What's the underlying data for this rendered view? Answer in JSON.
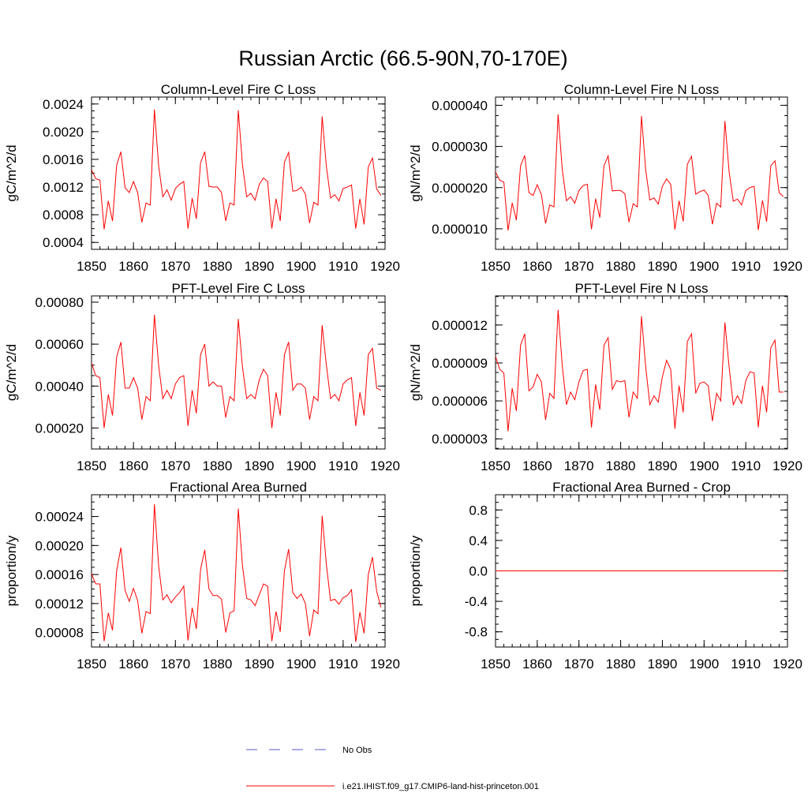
{
  "figure": {
    "title": "Russian Arctic (66.5-90N,70-170E)"
  },
  "legend": {
    "placement": "bottom-center",
    "entries": [
      {
        "label": "No Obs",
        "color": "#5a5ac8",
        "style": "dashed"
      },
      {
        "label": "i.e21.IHIST.f09_g17.CMIP6-land-hist-princeton.001",
        "color": "#ff0000",
        "style": "solid"
      }
    ]
  },
  "chart_data": [
    {
      "type": "line",
      "title": "Column-Level Fire C Loss",
      "xlabel": "",
      "ylabel": "gC/m^2/d",
      "xlim": [
        1850,
        1920
      ],
      "ylim": [
        0.0003,
        0.0025
      ],
      "xticks": [
        1850,
        1860,
        1870,
        1880,
        1890,
        1900,
        1910,
        1920
      ],
      "xtick_labels": [
        "1850",
        "1860",
        "1870",
        "1880",
        "1890",
        "1900",
        "1910",
        "1920"
      ],
      "yticks": [
        0.0004,
        0.0008,
        0.0012,
        0.0016,
        0.002,
        0.0024
      ],
      "ytick_labels": [
        "0.0004",
        "0.0008",
        "0.0012",
        "0.0016",
        "0.0020",
        "0.0024"
      ],
      "series": [
        {
          "color": "#ff0000",
          "x": [
            1850,
            1851,
            1852,
            1853,
            1854,
            1855,
            1856,
            1857,
            1858,
            1859,
            1860,
            1861,
            1862,
            1863,
            1864,
            1865,
            1866,
            1867,
            1868,
            1869,
            1870,
            1871,
            1872,
            1873,
            1874,
            1875,
            1876,
            1877,
            1878,
            1879,
            1880,
            1881,
            1882,
            1883,
            1884,
            1885,
            1886,
            1887,
            1888,
            1889,
            1890,
            1891,
            1892,
            1893,
            1894,
            1895,
            1896,
            1897,
            1898,
            1899,
            1900,
            1901,
            1902,
            1903,
            1904,
            1905,
            1906,
            1907,
            1908,
            1909,
            1910,
            1911,
            1912,
            1913,
            1914,
            1915,
            1916,
            1917,
            1918,
            1919
          ],
          "values": [
            0.00145,
            0.00132,
            0.0013,
            0.00059,
            0.001,
            0.00071,
            0.00152,
            0.00171,
            0.00119,
            0.00112,
            0.00128,
            0.00112,
            0.00069,
            0.00097,
            0.00094,
            0.00232,
            0.00151,
            0.00106,
            0.00116,
            0.00101,
            0.00118,
            0.00124,
            0.00128,
            0.0006,
            0.00104,
            0.00074,
            0.00155,
            0.00171,
            0.00121,
            0.0012,
            0.0012,
            0.00112,
            0.00071,
            0.00097,
            0.00094,
            0.00231,
            0.00152,
            0.00106,
            0.00111,
            0.00101,
            0.00124,
            0.00133,
            0.00128,
            0.0006,
            0.00103,
            0.00071,
            0.00156,
            0.0017,
            0.00114,
            0.00115,
            0.0012,
            0.0011,
            0.00068,
            0.00098,
            0.00094,
            0.00222,
            0.0015,
            0.00104,
            0.00109,
            0.001,
            0.00118,
            0.0012,
            0.00123,
            0.0006,
            0.00103,
            0.00066,
            0.00149,
            0.00162,
            0.00117,
            0.00108
          ]
        }
      ]
    },
    {
      "type": "line",
      "title": "Column-Level Fire N Loss",
      "xlabel": "",
      "ylabel": "gN/m^2/d",
      "xlim": [
        1850,
        1920
      ],
      "ylim": [
        5e-06,
        4.2e-05
      ],
      "xticks": [
        1850,
        1860,
        1870,
        1880,
        1890,
        1900,
        1910,
        1920
      ],
      "xtick_labels": [
        "1850",
        "1860",
        "1870",
        "1880",
        "1890",
        "1900",
        "1910",
        "1920"
      ],
      "yticks": [
        1e-05,
        2e-05,
        3e-05,
        4e-05
      ],
      "ytick_labels": [
        "0.000010",
        "0.000020",
        "0.000030",
        "0.000040"
      ],
      "series": [
        {
          "color": "#ff0000",
          "x": [
            1850,
            1851,
            1852,
            1853,
            1854,
            1855,
            1856,
            1857,
            1858,
            1859,
            1860,
            1861,
            1862,
            1863,
            1864,
            1865,
            1866,
            1867,
            1868,
            1869,
            1870,
            1871,
            1872,
            1873,
            1874,
            1875,
            1876,
            1877,
            1878,
            1879,
            1880,
            1881,
            1882,
            1883,
            1884,
            1885,
            1886,
            1887,
            1888,
            1889,
            1890,
            1891,
            1892,
            1893,
            1894,
            1895,
            1896,
            1897,
            1898,
            1899,
            1900,
            1901,
            1902,
            1903,
            1904,
            1905,
            1906,
            1907,
            1908,
            1909,
            1910,
            1911,
            1912,
            1913,
            1914,
            1915,
            1916,
            1917,
            1918,
            1919
          ],
          "values": [
            2.38e-05,
            2.18e-05,
            2.13e-05,
            9.6e-06,
            1.63e-05,
            1.21e-05,
            2.53e-05,
            2.78e-05,
            1.88e-05,
            1.81e-05,
            2.07e-05,
            1.83e-05,
            1.13e-05,
            1.58e-05,
            1.53e-05,
            3.78e-05,
            2.44e-05,
            1.68e-05,
            1.78e-05,
            1.62e-05,
            1.93e-05,
            2.05e-05,
            2.08e-05,
            9.9e-06,
            1.73e-05,
            1.27e-05,
            2.53e-05,
            2.77e-05,
            1.92e-05,
            1.93e-05,
            1.93e-05,
            1.85e-05,
            1.16e-05,
            1.61e-05,
            1.53e-05,
            3.74e-05,
            2.43e-05,
            1.7e-05,
            1.75e-05,
            1.6e-05,
            2.03e-05,
            2.21e-05,
            2.08e-05,
            9.8e-06,
            1.68e-05,
            1.18e-05,
            2.57e-05,
            2.76e-05,
            1.84e-05,
            1.9e-05,
            1.94e-05,
            1.81e-05,
            1.11e-05,
            1.62e-05,
            1.53e-05,
            3.62e-05,
            2.39e-05,
            1.67e-05,
            1.72e-05,
            1.58e-05,
            1.93e-05,
            2e-05,
            2.03e-05,
            9.7e-06,
            1.69e-05,
            1.17e-05,
            2.53e-05,
            2.65e-05,
            1.88e-05,
            1.78e-05
          ]
        }
      ]
    },
    {
      "type": "line",
      "title": "PFT-Level Fire C Loss",
      "xlabel": "",
      "ylabel": "gC/m^2/d",
      "xlim": [
        1850,
        1920
      ],
      "ylim": [
        0.0001,
        0.00083
      ],
      "xticks": [
        1850,
        1860,
        1870,
        1880,
        1890,
        1900,
        1910,
        1920
      ],
      "xtick_labels": [
        "1850",
        "1860",
        "1870",
        "1880",
        "1890",
        "1900",
        "1910",
        "1920"
      ],
      "yticks": [
        0.0002,
        0.0004,
        0.0006,
        0.0008
      ],
      "ytick_labels": [
        "0.00020",
        "0.00040",
        "0.00060",
        "0.00080"
      ],
      "series": [
        {
          "color": "#ff0000",
          "x": [
            1850,
            1851,
            1852,
            1853,
            1854,
            1855,
            1856,
            1857,
            1858,
            1859,
            1860,
            1861,
            1862,
            1863,
            1864,
            1865,
            1866,
            1867,
            1868,
            1869,
            1870,
            1871,
            1872,
            1873,
            1874,
            1875,
            1876,
            1877,
            1878,
            1879,
            1880,
            1881,
            1882,
            1883,
            1884,
            1885,
            1886,
            1887,
            1888,
            1889,
            1890,
            1891,
            1892,
            1893,
            1894,
            1895,
            1896,
            1897,
            1898,
            1899,
            1900,
            1901,
            1902,
            1903,
            1904,
            1905,
            1906,
            1907,
            1908,
            1909,
            1910,
            1911,
            1912,
            1913,
            1914,
            1915,
            1916,
            1917,
            1918,
            1919
          ],
          "values": [
            0.00051,
            0.00045,
            0.00044,
            0.0002,
            0.00036,
            0.00026,
            0.00054,
            0.00061,
            0.00039,
            0.00039,
            0.00044,
            0.00039,
            0.00024,
            0.00035,
            0.00033,
            0.00074,
            0.0005,
            0.00034,
            0.00038,
            0.00034,
            0.00041,
            0.00044,
            0.00045,
            0.00021,
            0.00038,
            0.00027,
            0.00055,
            0.0006,
            0.0004,
            0.00042,
            0.0004,
            0.0004,
            0.00025,
            0.00035,
            0.00033,
            0.00072,
            0.00049,
            0.00034,
            0.00036,
            0.00034,
            0.00043,
            0.00048,
            0.00045,
            0.0002,
            0.00037,
            0.00026,
            0.00055,
            0.00061,
            0.00038,
            0.00041,
            0.00041,
            0.00039,
            0.00024,
            0.00035,
            0.00033,
            0.00069,
            0.0005,
            0.00034,
            0.00036,
            0.00033,
            0.00041,
            0.00043,
            0.00044,
            0.00021,
            0.00037,
            0.00026,
            0.00055,
            0.00058,
            0.00039,
            0.00038
          ]
        }
      ]
    },
    {
      "type": "line",
      "title": "PFT-Level Fire N Loss",
      "xlabel": "",
      "ylabel": "gN/m^2/d",
      "xlim": [
        1850,
        1920
      ],
      "ylim": [
        2.2e-06,
        1.43e-05
      ],
      "xticks": [
        1850,
        1860,
        1870,
        1880,
        1890,
        1900,
        1910,
        1920
      ],
      "xtick_labels": [
        "1850",
        "1860",
        "1870",
        "1880",
        "1890",
        "1900",
        "1910",
        "1920"
      ],
      "yticks": [
        3e-06,
        6e-06,
        9e-06,
        1.2e-05
      ],
      "ytick_labels": [
        "0.000003",
        "0.000006",
        "0.000009",
        "0.000012"
      ],
      "series": [
        {
          "color": "#ff0000",
          "x": [
            1850,
            1851,
            1852,
            1853,
            1854,
            1855,
            1856,
            1857,
            1858,
            1859,
            1860,
            1861,
            1862,
            1863,
            1864,
            1865,
            1866,
            1867,
            1868,
            1869,
            1870,
            1871,
            1872,
            1873,
            1874,
            1875,
            1876,
            1877,
            1878,
            1879,
            1880,
            1881,
            1882,
            1883,
            1884,
            1885,
            1886,
            1887,
            1888,
            1889,
            1890,
            1891,
            1892,
            1893,
            1894,
            1895,
            1896,
            1897,
            1898,
            1899,
            1900,
            1901,
            1902,
            1903,
            1904,
            1905,
            1906,
            1907,
            1908,
            1909,
            1910,
            1911,
            1912,
            1913,
            1914,
            1915,
            1916,
            1917,
            1918,
            1919
          ],
          "values": [
            9.5e-06,
            8.5e-06,
            8.2e-06,
            3.6e-06,
            7e-06,
            5.2e-06,
            1.04e-05,
            1.13e-05,
            6.8e-06,
            7.1e-06,
            8.1e-06,
            7.5e-06,
            4.5e-06,
            6.6e-06,
            6.2e-06,
            1.32e-05,
            8.8e-06,
            5.7e-06,
            6.7e-06,
            6.1e-06,
            7.5e-06,
            8.4e-06,
            8.5e-06,
            3.9e-06,
            7.3e-06,
            5.3e-06,
            1.04e-05,
            1.1e-05,
            6.9e-06,
            7.6e-06,
            7.5e-06,
            7.6e-06,
            4.7e-06,
            6.7e-06,
            6.2e-06,
            1.27e-05,
            8.7e-06,
            5.7e-06,
            6.4e-06,
            5.9e-06,
            7.9e-06,
            9.2e-06,
            8.5e-06,
            3.8e-06,
            7.2e-06,
            5.1e-06,
            1.07e-05,
            1.13e-05,
            6.6e-06,
            7.4e-06,
            7.5e-06,
            7.2e-06,
            4.4e-06,
            6.6e-06,
            6e-06,
            1.22e-05,
            8.7e-06,
            5.7e-06,
            6.4e-06,
            5.8e-06,
            7.6e-06,
            8.3e-06,
            8.2e-06,
            3.9e-06,
            7.2e-06,
            5.1e-06,
            1.02e-05,
            1.08e-05,
            6.7e-06,
            6.7e-06
          ]
        }
      ]
    },
    {
      "type": "line",
      "title": "Fractional Area Burned",
      "xlabel": "",
      "ylabel": "proportion/y",
      "xlim": [
        1850,
        1920
      ],
      "ylim": [
        6e-05,
        0.00027
      ],
      "xticks": [
        1850,
        1860,
        1870,
        1880,
        1890,
        1900,
        1910,
        1920
      ],
      "xtick_labels": [
        "1850",
        "1860",
        "1870",
        "1880",
        "1890",
        "1900",
        "1910",
        "1920"
      ],
      "yticks": [
        8e-05,
        0.00012,
        0.00016,
        0.0002,
        0.00024
      ],
      "ytick_labels": [
        "0.00008",
        "0.00012",
        "0.00016",
        "0.00020",
        "0.00024"
      ],
      "series": [
        {
          "color": "#ff0000",
          "x": [
            1850,
            1851,
            1852,
            1853,
            1854,
            1855,
            1856,
            1857,
            1858,
            1859,
            1860,
            1861,
            1862,
            1863,
            1864,
            1865,
            1866,
            1867,
            1868,
            1869,
            1870,
            1871,
            1872,
            1873,
            1874,
            1875,
            1876,
            1877,
            1878,
            1879,
            1880,
            1881,
            1882,
            1883,
            1884,
            1885,
            1886,
            1887,
            1888,
            1889,
            1890,
            1891,
            1892,
            1893,
            1894,
            1895,
            1896,
            1897,
            1898,
            1899,
            1900,
            1901,
            1902,
            1903,
            1904,
            1905,
            1906,
            1907,
            1908,
            1909,
            1910,
            1911,
            1912,
            1913,
            1914,
            1915,
            1916,
            1917,
            1918,
            1919
          ],
          "values": [
            0.000161,
            0.000147,
            0.000147,
            6.8e-05,
            0.000107,
            8.3e-05,
            0.000166,
            0.000197,
            0.000138,
            0.000123,
            0.000141,
            0.000124,
            7.9e-05,
            0.000109,
            0.000106,
            0.000257,
            0.000172,
            0.000125,
            0.000132,
            0.000121,
            0.000129,
            0.000135,
            0.000144,
            6.9e-05,
            0.000114,
            8.5e-05,
            0.000167,
            0.000194,
            0.00014,
            0.000131,
            0.000131,
            0.000126,
            8e-05,
            0.000107,
            0.00011,
            0.000251,
            0.000172,
            0.000127,
            0.000125,
            0.000117,
            0.000132,
            0.000147,
            0.000144,
            6.8e-05,
            0.000109,
            8.1e-05,
            0.000165,
            0.000195,
            0.000135,
            0.000127,
            0.000133,
            0.00012,
            7.5e-05,
            0.000111,
            0.000106,
            0.000241,
            0.000174,
            0.000124,
            0.000126,
            0.000119,
            0.000128,
            0.000131,
            0.000139,
            6.7e-05,
            0.000108,
            7.9e-05,
            0.00016,
            0.000184,
            0.000137,
            0.000115
          ]
        }
      ]
    },
    {
      "type": "line",
      "title": "Fractional Area Burned - Crop",
      "xlabel": "",
      "ylabel": "proportion/y",
      "xlim": [
        1850,
        1920
      ],
      "ylim": [
        -1.0,
        1.0
      ],
      "xticks": [
        1850,
        1860,
        1870,
        1880,
        1890,
        1900,
        1910,
        1920
      ],
      "xtick_labels": [
        "1850",
        "1860",
        "1870",
        "1880",
        "1890",
        "1900",
        "1910",
        "1920"
      ],
      "yticks": [
        -0.8,
        -0.4,
        0.0,
        0.4,
        0.8
      ],
      "ytick_labels": [
        "-0.8",
        "-0.4",
        "0.0",
        "0.4",
        "0.8"
      ],
      "series": [
        {
          "color": "#ff0000",
          "x": [
            1850,
            1919
          ],
          "values": [
            0.0,
            0.0
          ]
        }
      ]
    }
  ]
}
